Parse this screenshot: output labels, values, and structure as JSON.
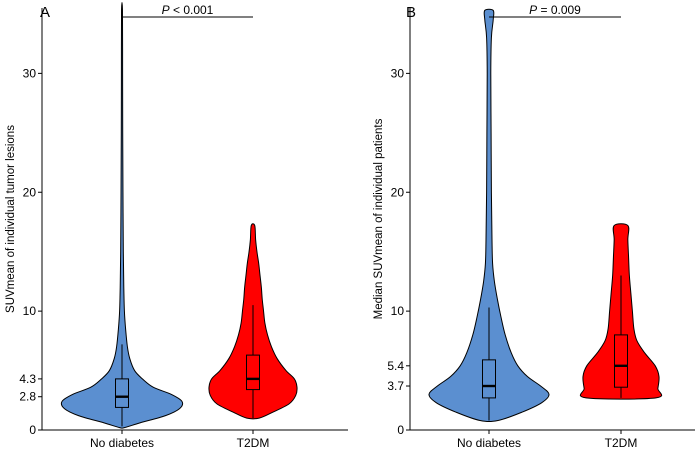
{
  "chart_data": [
    {
      "type": "violin",
      "panel": "A",
      "ylabel": "SUVmean of individual tumor lesions",
      "categories": [
        "No diabetes",
        "T2DM"
      ],
      "yticks": [
        0,
        2.8,
        4.3,
        10,
        20,
        30
      ],
      "ylim": [
        0,
        35.5
      ],
      "annotation": {
        "prefix": "P",
        "text": " < 0.001"
      },
      "colors": [
        "#5b8fd0",
        "#ff0000"
      ],
      "groups": [
        {
          "name": "No diabetes",
          "box": {
            "whisker_low": 0.3,
            "q1": 1.9,
            "median": 2.8,
            "q3": 4.3,
            "whisker_high": 7.2
          },
          "range": [
            0.2,
            35.3
          ],
          "density": [
            [
              0.2,
              0.04
            ],
            [
              0.6,
              0.3
            ],
            [
              1.2,
              0.72
            ],
            [
              1.8,
              0.96
            ],
            [
              2.4,
              1.0
            ],
            [
              3.0,
              0.82
            ],
            [
              3.6,
              0.52
            ],
            [
              4.3,
              0.34
            ],
            [
              5.0,
              0.21
            ],
            [
              6.0,
              0.13
            ],
            [
              7.0,
              0.09
            ],
            [
              8.5,
              0.06
            ],
            [
              10,
              0.04
            ],
            [
              12,
              0.03
            ],
            [
              15,
              0.022
            ],
            [
              20,
              0.016
            ],
            [
              25,
              0.012
            ],
            [
              30,
              0.01
            ],
            [
              35.3,
              0.008
            ]
          ]
        },
        {
          "name": "T2DM",
          "box": {
            "whisker_low": 1.0,
            "q1": 3.4,
            "median": 4.3,
            "q3": 6.3,
            "whisker_high": 10.5
          },
          "range": [
            1.0,
            17.2
          ],
          "density": [
            [
              1.0,
              0.14
            ],
            [
              1.5,
              0.45
            ],
            [
              2.2,
              0.82
            ],
            [
              2.9,
              0.97
            ],
            [
              3.6,
              1.0
            ],
            [
              4.3,
              0.94
            ],
            [
              5.0,
              0.75
            ],
            [
              6.0,
              0.55
            ],
            [
              7.0,
              0.42
            ],
            [
              8.0,
              0.33
            ],
            [
              9.0,
              0.27
            ],
            [
              10,
              0.24
            ],
            [
              11,
              0.21
            ],
            [
              12,
              0.19
            ],
            [
              13,
              0.16
            ],
            [
              14,
              0.13
            ],
            [
              15,
              0.09
            ],
            [
              16,
              0.06
            ],
            [
              17.2,
              0.04
            ]
          ]
        }
      ]
    },
    {
      "type": "violin",
      "panel": "B",
      "ylabel": "Median SUVmean of individual patients",
      "categories": [
        "No diabetes",
        "T2DM"
      ],
      "yticks": [
        0,
        3.7,
        5.4,
        10,
        20,
        30
      ],
      "ylim": [
        0,
        35.5
      ],
      "annotation": {
        "prefix": "P",
        "text": " = 0.009"
      },
      "colors": [
        "#5b8fd0",
        "#ff0000"
      ],
      "groups": [
        {
          "name": "No diabetes",
          "box": {
            "whisker_low": 0.8,
            "q1": 2.7,
            "median": 3.7,
            "q3": 5.9,
            "whisker_high": 10.3
          },
          "range": [
            0.8,
            35.3
          ],
          "density": [
            [
              0.8,
              0.15
            ],
            [
              1.5,
              0.55
            ],
            [
              2.3,
              0.88
            ],
            [
              3.0,
              1.0
            ],
            [
              3.7,
              0.86
            ],
            [
              4.5,
              0.64
            ],
            [
              5.4,
              0.48
            ],
            [
              6.5,
              0.37
            ],
            [
              8.0,
              0.27
            ],
            [
              9.5,
              0.2
            ],
            [
              11,
              0.14
            ],
            [
              12.5,
              0.09
            ],
            [
              14,
              0.06
            ],
            [
              16,
              0.05
            ],
            [
              20,
              0.04
            ],
            [
              25,
              0.035
            ],
            [
              30,
              0.03
            ],
            [
              33,
              0.04
            ],
            [
              34.5,
              0.07
            ],
            [
              35.3,
              0.07
            ]
          ]
        },
        {
          "name": "T2DM",
          "box": {
            "whisker_low": 2.7,
            "q1": 3.6,
            "median": 5.4,
            "q3": 8.0,
            "whisker_high": 13.0
          },
          "range": [
            2.7,
            17.2
          ],
          "density": [
            [
              2.7,
              0.92
            ],
            [
              3.5,
              0.97
            ],
            [
              4.5,
              1.0
            ],
            [
              5.4,
              0.9
            ],
            [
              6.5,
              0.62
            ],
            [
              7.5,
              0.42
            ],
            [
              8.5,
              0.34
            ],
            [
              10,
              0.3
            ],
            [
              11.5,
              0.26
            ],
            [
              13,
              0.22
            ],
            [
              14.5,
              0.2
            ],
            [
              16,
              0.18
            ],
            [
              17.2,
              0.18
            ]
          ]
        }
      ]
    }
  ]
}
